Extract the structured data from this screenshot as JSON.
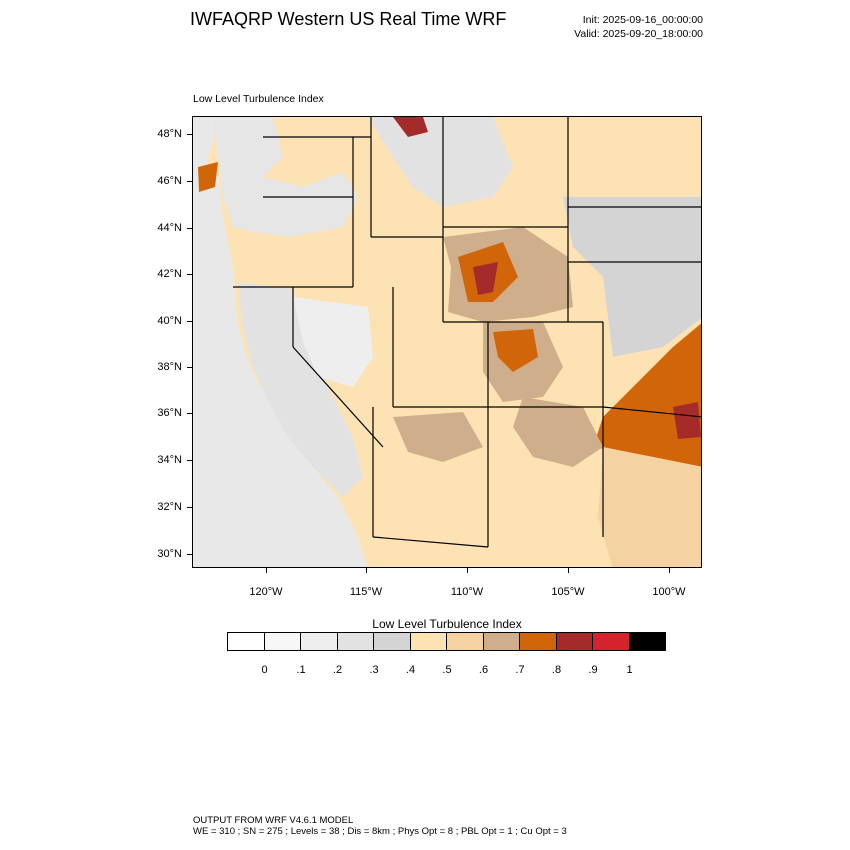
{
  "header": {
    "title": "IWFAQRP Western US Real Time WRF",
    "init": "Init: 2025-09-16_00:00:00",
    "valid": "Valid: 2025-09-20_18:00:00"
  },
  "map": {
    "subtitle": "Low Level Turbulence Index",
    "lat_labels": [
      "48°N",
      "46°N",
      "44°N",
      "42°N",
      "40°N",
      "38°N",
      "36°N",
      "34°N",
      "32°N",
      "30°N"
    ],
    "lon_labels": [
      "120°W",
      "115°W",
      "110°W",
      "105°W",
      "100°W"
    ],
    "colors": {
      "ocean": "#f0f0f0",
      "level_0": "#ffffff",
      "level_01": "#f7f7f7",
      "level_02": "#eeeeee",
      "level_03": "#e2e2e2",
      "level_04": "#d4d4d4",
      "level_05": "#fde3b3",
      "level_06": "#f4d2a2",
      "level_07": "#cfae8c",
      "level_08": "#d1650a",
      "level_09": "#a52a2a",
      "level_10": "#d3232c",
      "level_max": "#000000"
    }
  },
  "legend": {
    "title": "Low Level Turbulence Index",
    "swatches": [
      "#ffffff",
      "#f7f7f7",
      "#eeeeee",
      "#e2e2e2",
      "#d4d4d4",
      "#fde3b3",
      "#f4d2a2",
      "#cfae8c",
      "#d1650a",
      "#a52a2a",
      "#d3232c",
      "#000000"
    ],
    "labels": [
      "0",
      ".1",
      ".2",
      ".3",
      ".4",
      ".5",
      ".6",
      ".7",
      ".8",
      ".9",
      "1"
    ]
  },
  "footer": {
    "line1": "OUTPUT FROM WRF V4.6.1 MODEL",
    "line2": "WE = 310 ; SN = 275 ; Levels = 38 ; Dis = 8km ; Phys Opt = 8 ; PBL Opt = 1 ; Cu Opt = 3"
  }
}
